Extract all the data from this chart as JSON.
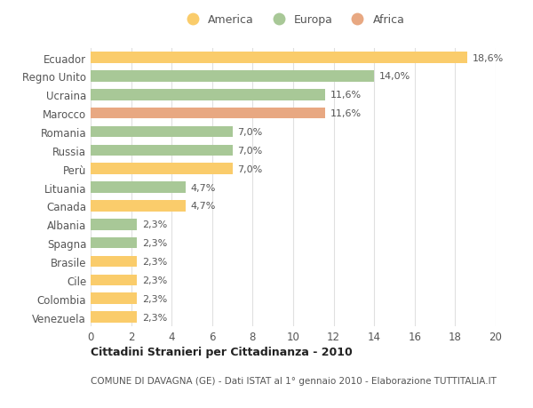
{
  "categories": [
    "Venezuela",
    "Colombia",
    "Cile",
    "Brasile",
    "Spagna",
    "Albania",
    "Canada",
    "Lituania",
    "Perù",
    "Russia",
    "Romania",
    "Marocco",
    "Ucraina",
    "Regno Unito",
    "Ecuador"
  ],
  "values": [
    2.3,
    2.3,
    2.3,
    2.3,
    2.3,
    2.3,
    4.7,
    4.7,
    7.0,
    7.0,
    7.0,
    11.6,
    11.6,
    14.0,
    18.6
  ],
  "labels": [
    "2,3%",
    "2,3%",
    "2,3%",
    "2,3%",
    "2,3%",
    "2,3%",
    "4,7%",
    "4,7%",
    "7,0%",
    "7,0%",
    "7,0%",
    "11,6%",
    "11,6%",
    "14,0%",
    "18,6%"
  ],
  "colors": [
    "#FACC6B",
    "#FACC6B",
    "#FACC6B",
    "#FACC6B",
    "#A8C897",
    "#A8C897",
    "#FACC6B",
    "#A8C897",
    "#FACC6B",
    "#A8C897",
    "#A8C897",
    "#E8A882",
    "#A8C897",
    "#A8C897",
    "#FACC6B"
  ],
  "legend": [
    {
      "label": "America",
      "color": "#FACC6B"
    },
    {
      "label": "Europa",
      "color": "#A8C897"
    },
    {
      "label": "Africa",
      "color": "#E8A882"
    }
  ],
  "xlim": [
    0,
    20
  ],
  "xticks": [
    0,
    2,
    4,
    6,
    8,
    10,
    12,
    14,
    16,
    18,
    20
  ],
  "title1": "Cittadini Stranieri per Cittadinanza - 2010",
  "title2": "COMUNE DI DAVAGNA (GE) - Dati ISTAT al 1° gennaio 2010 - Elaborazione TUTTITALIA.IT",
  "bg_color": "#FFFFFF",
  "bar_height": 0.6,
  "grid_color": "#E0E0E0",
  "label_fontsize": 8,
  "ytick_fontsize": 8.5,
  "xtick_fontsize": 8.5
}
